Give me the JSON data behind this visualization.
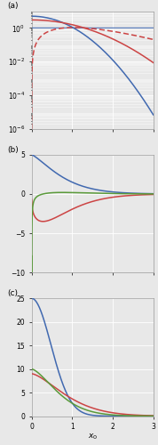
{
  "xlim": [
    0,
    3
  ],
  "panel_a": {
    "ylim_log": [
      -6,
      1
    ],
    "yticks": [
      1e-06,
      0.0001,
      0.01,
      1.0
    ],
    "label": "(a)"
  },
  "panel_b": {
    "ylim": [
      -10,
      5
    ],
    "yticks": [
      -10,
      -5,
      0,
      5
    ],
    "label": "(b)"
  },
  "panel_c": {
    "ylim": [
      0,
      25
    ],
    "yticks": [
      0,
      5,
      10,
      15,
      20,
      25
    ],
    "label": "(c)",
    "xlabel": "x_0"
  },
  "colors": {
    "blue": "#4169B0",
    "red": "#CC4444",
    "green": "#5A9A3A"
  },
  "background": "#E8E8E8",
  "grid_color": "#FFFFFF",
  "xticks": [
    0,
    1,
    2,
    3
  ]
}
